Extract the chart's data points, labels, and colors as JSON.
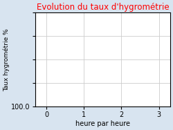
{
  "title": "Evolution du taux d'hygrométrie",
  "title_color": "#ff0000",
  "xlabel": "heure par heure",
  "ylabel": "Taux hygrométrie %",
  "background_color": "#d8e4f0",
  "plot_bg_color": "#ffffff",
  "xlim": [
    -0.3,
    3.3
  ],
  "xticks": [
    0,
    1,
    2,
    3
  ],
  "grid_color": "#cccccc",
  "title_fontsize": 8.5,
  "axis_label_fontsize": 7,
  "tick_fontsize": 7,
  "ylabel_fontsize": 6.5
}
